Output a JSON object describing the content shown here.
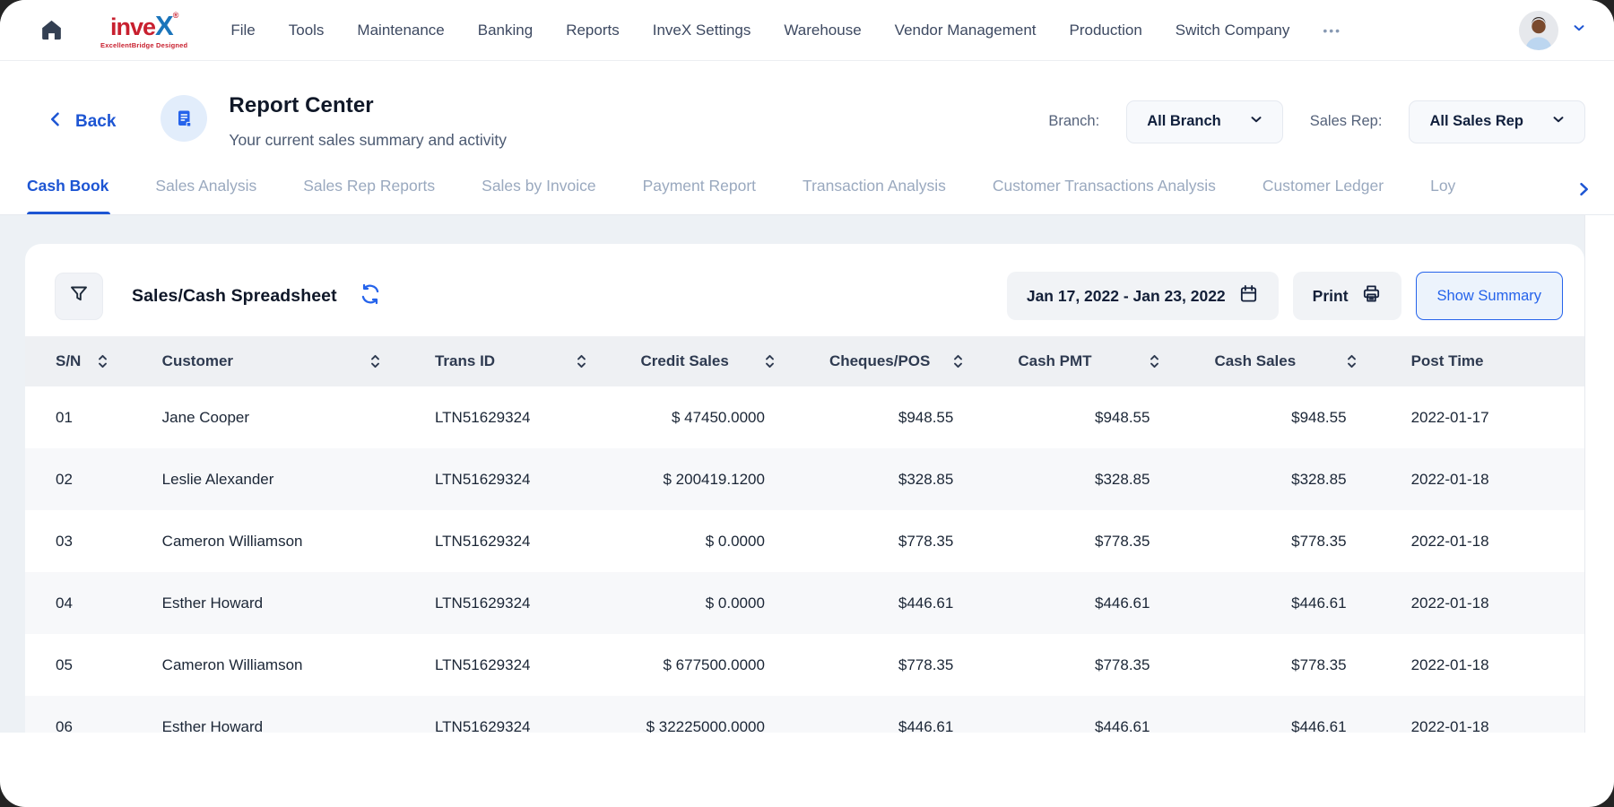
{
  "nav": {
    "logo": {
      "word_part1": "inve",
      "word_part2": "X",
      "registered": "®",
      "tagline": "ExcellentBridge Designed"
    },
    "items": [
      "File",
      "Tools",
      "Maintenance",
      "Banking",
      "Reports",
      "InveX Settings",
      "Warehouse",
      "Vendor Management",
      "Production",
      "Switch Company"
    ],
    "more_label": "•••"
  },
  "header": {
    "back_label": "Back",
    "title": "Report Center",
    "subtitle": "Your current sales summary and activity",
    "branch_label": "Branch:",
    "branch_value": "All Branch",
    "sales_rep_label": "Sales Rep:",
    "sales_rep_value": "All Sales Rep"
  },
  "tabs": {
    "items": [
      {
        "label": "Cash Book",
        "active": true
      },
      {
        "label": "Sales Analysis",
        "active": false
      },
      {
        "label": "Sales Rep Reports",
        "active": false
      },
      {
        "label": "Sales by Invoice",
        "active": false
      },
      {
        "label": "Payment Report",
        "active": false
      },
      {
        "label": "Transaction Analysis",
        "active": false
      },
      {
        "label": "Customer Transactions Analysis",
        "active": false
      },
      {
        "label": "Customer Ledger",
        "active": false
      },
      {
        "label": "Loy",
        "active": false
      }
    ]
  },
  "toolbar": {
    "title": "Sales/Cash Spreadsheet",
    "date_range": "Jan 17, 2022 - Jan 23, 2022",
    "print_label": "Print",
    "show_summary_label": "Show Summary"
  },
  "table": {
    "columns": [
      {
        "label": "S/N",
        "sortable": true,
        "align": "left"
      },
      {
        "label": "Customer",
        "sortable": true,
        "align": "left"
      },
      {
        "label": "Trans ID",
        "sortable": true,
        "align": "left"
      },
      {
        "label": "Credit Sales",
        "sortable": true,
        "align": "right"
      },
      {
        "label": "Cheques/POS",
        "sortable": true,
        "align": "right"
      },
      {
        "label": "Cash PMT",
        "sortable": true,
        "align": "right"
      },
      {
        "label": "Cash Sales",
        "sortable": true,
        "align": "right"
      },
      {
        "label": "Post Time",
        "sortable": false,
        "align": "left"
      }
    ],
    "rows": [
      [
        "01",
        "Jane Cooper",
        "LTN51629324",
        "$ 47450.0000",
        "$948.55",
        "$948.55",
        "$948.55",
        "2022-01-17"
      ],
      [
        "02",
        "Leslie Alexander",
        "LTN51629324",
        "$ 200419.1200",
        "$328.85",
        "$328.85",
        "$328.85",
        "2022-01-18"
      ],
      [
        "03",
        "Cameron Williamson",
        "LTN51629324",
        "$ 0.0000",
        "$778.35",
        "$778.35",
        "$778.35",
        "2022-01-18"
      ],
      [
        "04",
        "Esther Howard",
        "LTN51629324",
        "$ 0.0000",
        "$446.61",
        "$446.61",
        "$446.61",
        "2022-01-18"
      ],
      [
        "05",
        "Cameron Williamson",
        "LTN51629324",
        "$ 677500.0000",
        "$778.35",
        "$778.35",
        "$778.35",
        "2022-01-18"
      ],
      [
        "06",
        "Esther Howard",
        "LTN51629324",
        "$ 32225000.0000",
        "$446.61",
        "$446.61",
        "$446.61",
        "2022-01-18"
      ]
    ]
  },
  "colors": {
    "accent_blue": "#1d55d3",
    "logo_red": "#C8202F",
    "logo_blue": "#1B75BB",
    "inactive_tab": "#9aa9bf",
    "table_header_bg": "#eef0f3",
    "alt_row_bg": "#f7f8fa",
    "page_bg": "#edf1f5"
  }
}
